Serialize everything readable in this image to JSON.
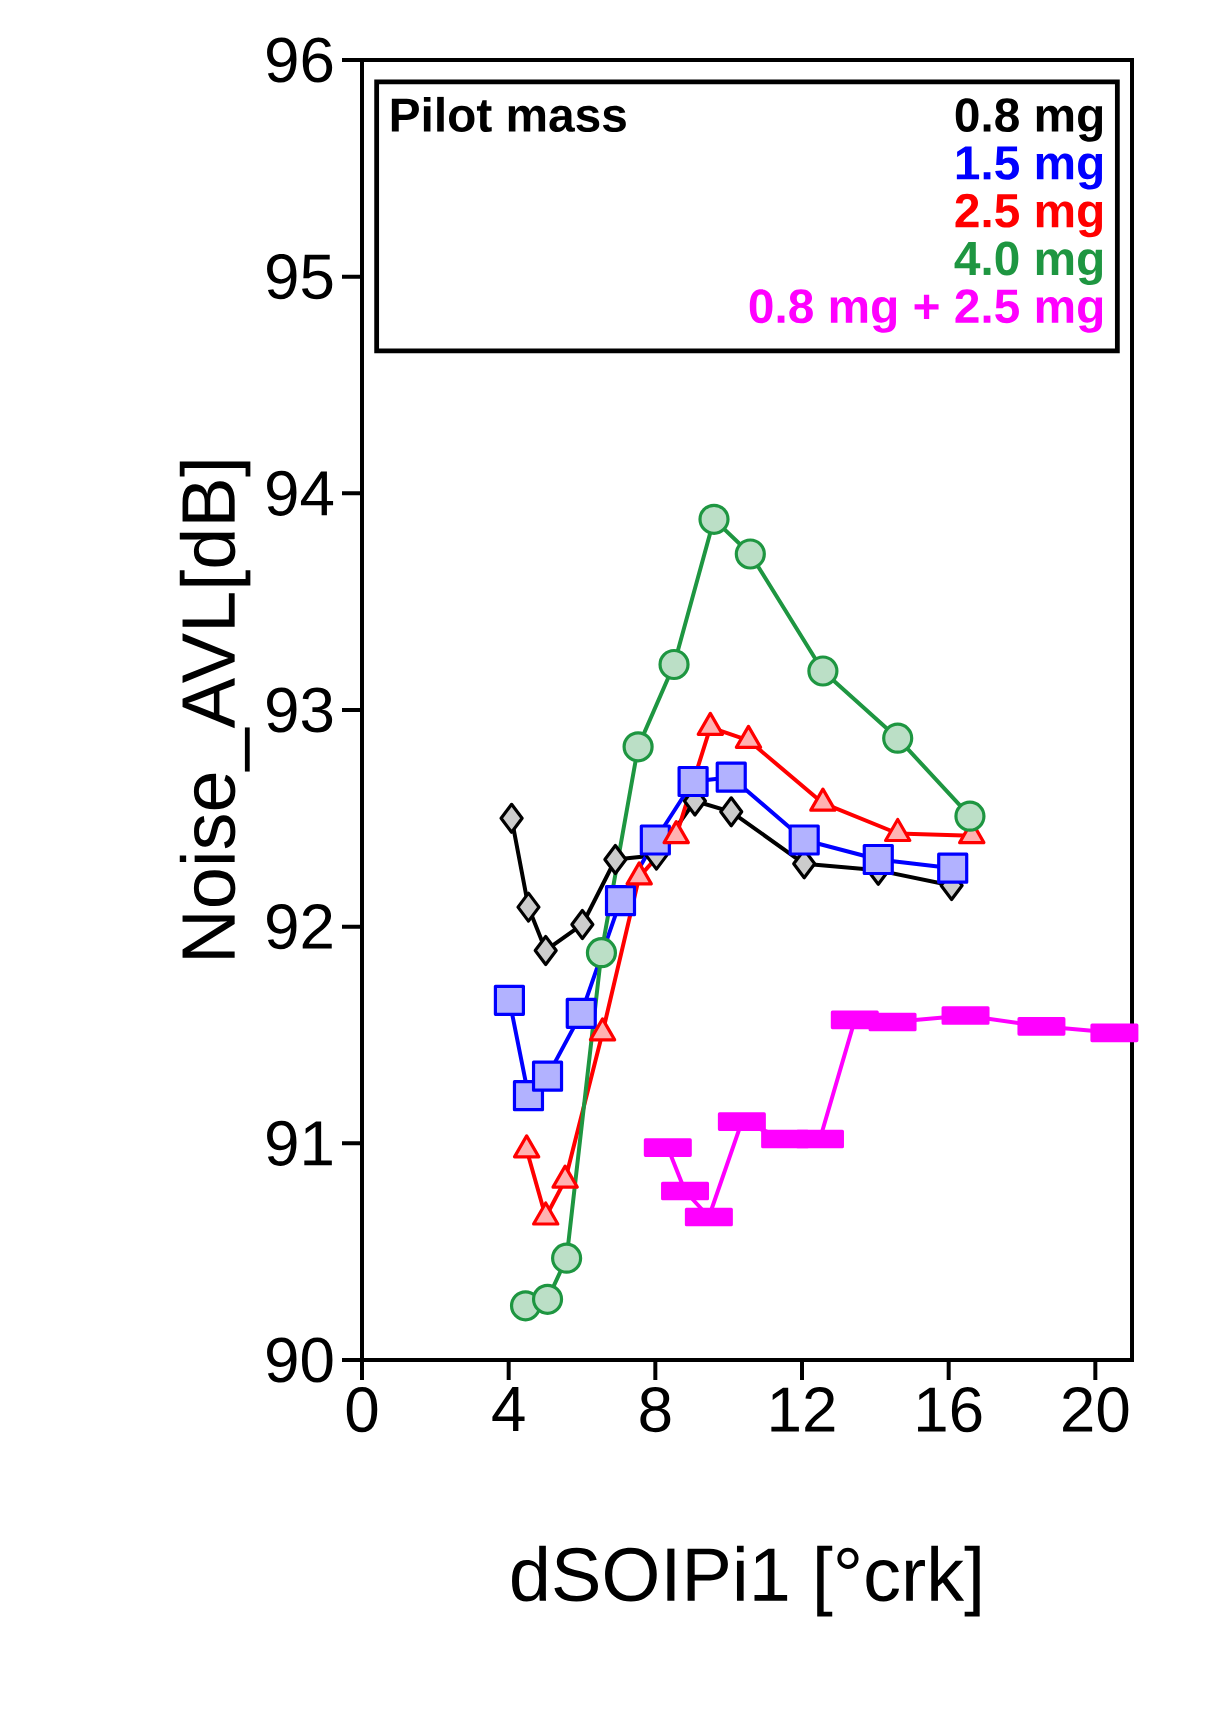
{
  "chart_data": {
    "type": "line",
    "xlabel": "dSOIPi1 [°crk]",
    "ylabel": "Noise_AVL[dB]",
    "legend_title": "Pilot mass",
    "legend": "top",
    "grid": false,
    "xlim": [
      0,
      21
    ],
    "xticks": [
      0,
      4,
      8,
      12,
      16,
      20
    ],
    "ylim": [
      90,
      96
    ],
    "yticks": [
      90,
      91,
      92,
      93,
      94,
      95,
      96
    ],
    "series": [
      {
        "name": "0.8 mg",
        "color": "#000000",
        "marker": "diamond",
        "x": [
          4.08,
          4.54,
          5.01,
          6.01,
          6.91,
          8.03,
          9.08,
          10.07,
          12.06,
          14.08,
          16.08
        ],
        "values": [
          92.5,
          92.09,
          91.89,
          92.01,
          92.31,
          92.33,
          92.58,
          92.53,
          92.29,
          92.26,
          92.19
        ]
      },
      {
        "name": "1.5 mg",
        "color": "#0000ff",
        "marker": "square",
        "x": [
          4.02,
          4.54,
          5.06,
          5.98,
          7.05,
          8.0,
          9.03,
          10.07,
          12.06,
          14.08,
          16.11
        ],
        "values": [
          91.66,
          91.22,
          91.31,
          91.6,
          92.12,
          92.4,
          92.67,
          92.69,
          92.4,
          92.31,
          92.27
        ]
      },
      {
        "name": "2.5 mg",
        "color": "#ff0000",
        "marker": "triangle",
        "x": [
          4.49,
          5.01,
          5.54,
          6.56,
          7.56,
          8.57,
          9.5,
          10.54,
          12.57,
          14.61,
          16.63
        ],
        "values": [
          90.97,
          90.66,
          90.83,
          91.51,
          92.23,
          92.42,
          92.92,
          92.86,
          92.57,
          92.43,
          92.42
        ]
      },
      {
        "name": "4.0 mg",
        "color": "#1e9641",
        "marker": "circle",
        "x": [
          4.46,
          5.06,
          5.58,
          6.53,
          7.53,
          8.51,
          9.6,
          10.59,
          12.57,
          14.61,
          16.58
        ],
        "values": [
          90.25,
          90.28,
          90.47,
          91.88,
          92.83,
          93.21,
          93.88,
          93.72,
          93.18,
          92.87,
          92.51
        ]
      },
      {
        "name": "0.8 mg + 2.5 mg",
        "color": "#ff00ff",
        "marker": "square",
        "x": [
          8.34,
          8.81,
          9.46,
          10.36,
          11.54,
          12.49,
          13.44,
          14.47,
          16.46,
          18.53,
          20.52
        ],
        "values": [
          90.98,
          90.78,
          90.66,
          91.1,
          91.02,
          91.02,
          91.57,
          91.56,
          91.59,
          91.54,
          91.51
        ]
      }
    ]
  }
}
